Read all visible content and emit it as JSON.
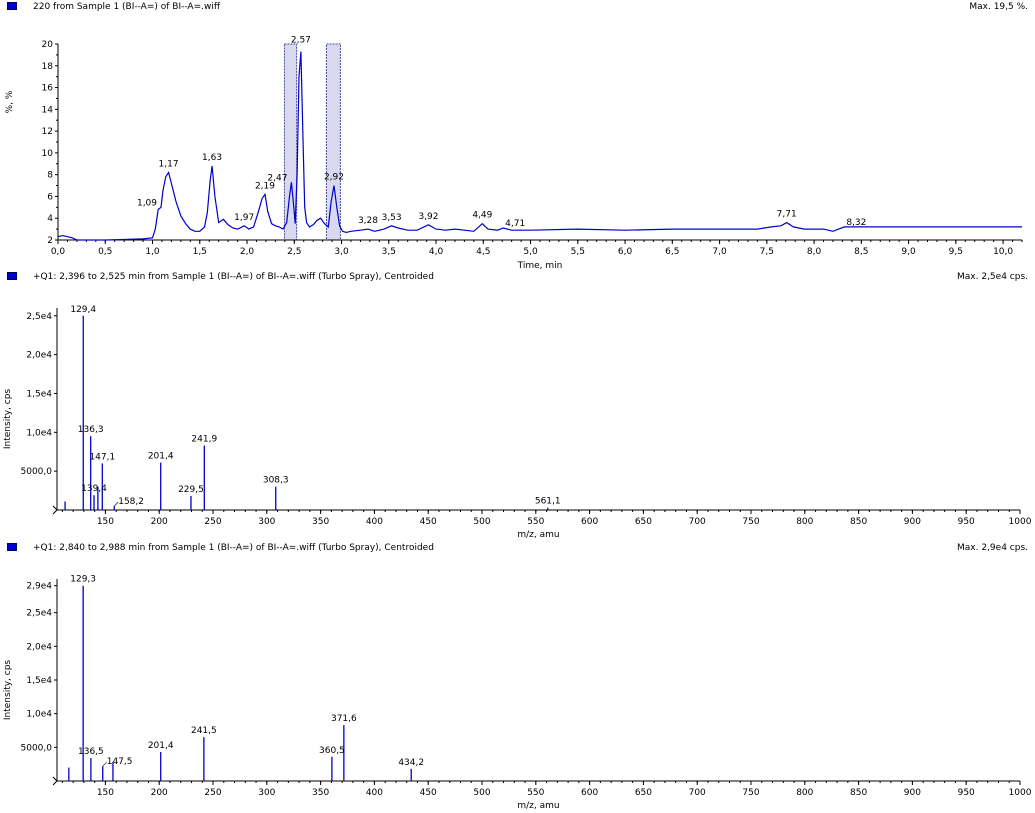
{
  "chart_data": [
    {
      "type": "line",
      "header": "220 from Sample 1 (BI--A=) of BI--A=.wiff",
      "max_label": "Max. 19,5 %.",
      "xlabel": "Time, min",
      "ylabel": "%, %",
      "xlim": [
        0.0,
        10.2
      ],
      "ylim": [
        2,
        20
      ],
      "x_ticks": [
        "0,0",
        "0,5",
        "1,0",
        "1,5",
        "2,0",
        "2,5",
        "3,0",
        "3,5",
        "4,0",
        "4,5",
        "5,0",
        "5,5",
        "6,0",
        "6,5",
        "7,0",
        "7,5",
        "8,0",
        "8,5",
        "9,0",
        "9,5",
        "10,0"
      ],
      "y_ticks": [
        "2",
        "4",
        "6",
        "8",
        "10",
        "12",
        "14",
        "16",
        "18",
        "20"
      ],
      "series": [
        {
          "color": "#0000cc",
          "x": [
            0.0,
            0.05,
            0.1,
            0.15,
            0.2,
            0.3,
            0.5,
            0.7,
            0.9,
            1.0,
            1.03,
            1.06,
            1.09,
            1.11,
            1.14,
            1.17,
            1.2,
            1.25,
            1.3,
            1.35,
            1.4,
            1.45,
            1.5,
            1.55,
            1.58,
            1.61,
            1.63,
            1.66,
            1.7,
            1.75,
            1.8,
            1.85,
            1.9,
            1.97,
            2.02,
            2.07,
            2.12,
            2.16,
            2.19,
            2.22,
            2.26,
            2.3,
            2.34,
            2.38,
            2.42,
            2.45,
            2.47,
            2.49,
            2.51,
            2.53,
            2.55,
            2.57,
            2.59,
            2.61,
            2.63,
            2.66,
            2.7,
            2.74,
            2.78,
            2.82,
            2.86,
            2.89,
            2.92,
            2.95,
            2.98,
            3.01,
            3.05,
            3.1,
            3.2,
            3.28,
            3.35,
            3.45,
            3.53,
            3.6,
            3.7,
            3.8,
            3.92,
            4.0,
            4.1,
            4.2,
            4.3,
            4.4,
            4.49,
            4.55,
            4.65,
            4.71,
            4.8,
            5.0,
            5.5,
            6.0,
            6.5,
            7.0,
            7.4,
            7.55,
            7.65,
            7.71,
            7.78,
            7.9,
            8.1,
            8.2,
            8.32,
            8.5,
            9.0,
            9.5,
            10.0,
            10.2
          ],
          "y": [
            2.3,
            2.4,
            2.3,
            2.2,
            2.0,
            2.0,
            2.0,
            2.05,
            2.1,
            2.2,
            3.0,
            4.8,
            5.0,
            6.5,
            7.8,
            8.2,
            7.2,
            5.5,
            4.2,
            3.5,
            3.0,
            2.8,
            2.8,
            3.2,
            4.5,
            7.5,
            8.8,
            6.0,
            3.6,
            3.9,
            3.4,
            3.1,
            3.0,
            3.3,
            3.0,
            3.2,
            4.6,
            5.8,
            6.2,
            4.6,
            3.5,
            3.3,
            3.2,
            3.0,
            3.6,
            6.0,
            7.3,
            5.5,
            3.5,
            8.0,
            17.0,
            19.3,
            12.0,
            5.0,
            3.6,
            3.2,
            3.4,
            3.8,
            4.0,
            3.5,
            3.2,
            5.5,
            7.0,
            5.0,
            3.3,
            2.8,
            2.7,
            2.8,
            2.9,
            3.0,
            2.8,
            3.0,
            3.3,
            3.1,
            2.9,
            2.9,
            3.4,
            3.0,
            2.9,
            3.0,
            2.9,
            2.8,
            3.5,
            3.0,
            2.9,
            3.1,
            2.9,
            2.9,
            3.0,
            2.9,
            3.0,
            3.0,
            3.0,
            3.2,
            3.3,
            3.6,
            3.2,
            3.0,
            3.0,
            2.8,
            3.2,
            3.2,
            3.2,
            3.2,
            3.2,
            3.2
          ]
        }
      ],
      "peak_labels": [
        {
          "x": 1.09,
          "y": 5.0,
          "text": "1,09"
        },
        {
          "x": 1.17,
          "y": 8.2,
          "text": "1,17"
        },
        {
          "x": 1.63,
          "y": 8.8,
          "text": "1,63"
        },
        {
          "x": 1.97,
          "y": 3.3,
          "text": "1,97"
        },
        {
          "x": 2.19,
          "y": 6.2,
          "text": "2,19"
        },
        {
          "x": 2.47,
          "y": 7.3,
          "text": "2,47"
        },
        {
          "x": 2.57,
          "y": 19.3,
          "text": "2,57"
        },
        {
          "x": 2.92,
          "y": 7.0,
          "text": "2,92"
        },
        {
          "x": 3.28,
          "y": 3.0,
          "text": "3,28"
        },
        {
          "x": 3.53,
          "y": 3.3,
          "text": "3,53"
        },
        {
          "x": 3.92,
          "y": 3.4,
          "text": "3,92"
        },
        {
          "x": 4.49,
          "y": 3.5,
          "text": "4,49"
        },
        {
          "x": 4.71,
          "y": 3.1,
          "text": "4,71"
        },
        {
          "x": 7.71,
          "y": 3.6,
          "text": "7,71"
        },
        {
          "x": 8.32,
          "y": 3.2,
          "text": "8,32"
        }
      ],
      "selection_ranges": [
        [
          2.396,
          2.525
        ],
        [
          2.84,
          2.988
        ]
      ]
    },
    {
      "type": "bar",
      "header": "+Q1: 2,396 to 2,525 min from Sample 1 (BI--A=) of BI--A=.wiff (Turbo Spray), Centroided",
      "max_label": "Max. 2,5e4 cps.",
      "xlabel": "m/z, amu",
      "ylabel": "Intensity, cps",
      "xlim": [
        105,
        1000
      ],
      "ylim": [
        0,
        26000
      ],
      "x_ticks": [
        "150",
        "200",
        "250",
        "300",
        "350",
        "400",
        "450",
        "500",
        "550",
        "600",
        "650",
        "700",
        "750",
        "800",
        "850",
        "900",
        "950",
        "1000"
      ],
      "y_ticks": [
        "5000,0",
        "1,0e4",
        "1,5e4",
        "2,0e4",
        "2,5e4"
      ],
      "peaks_x": [
        112.5,
        129.4,
        136.3,
        139.4,
        143.0,
        147.1,
        158.2,
        201.4,
        229.5,
        241.9,
        308.3,
        561.1
      ],
      "peaks_y": [
        1100,
        25000,
        9500,
        1900,
        3000,
        6000,
        500,
        6100,
        1800,
        8300,
        3000,
        300
      ],
      "labels": [
        {
          "x": 129.4,
          "text": "129,4"
        },
        {
          "x": 136.3,
          "text": "136,3"
        },
        {
          "x": 147.1,
          "text": "147,1"
        },
        {
          "x": 139.4,
          "text": "139,4"
        },
        {
          "x": 158.2,
          "text": "158,2"
        },
        {
          "x": 201.4,
          "text": "201,4"
        },
        {
          "x": 229.5,
          "text": "229,5"
        },
        {
          "x": 241.9,
          "text": "241,9"
        },
        {
          "x": 308.3,
          "text": "308,3"
        },
        {
          "x": 561.1,
          "text": "561,1"
        }
      ]
    },
    {
      "type": "bar",
      "header": "+Q1: 2,840 to 2,988 min from Sample 1 (BI--A=) of BI--A=.wiff (Turbo Spray), Centroided",
      "max_label": "Max. 2,9e4 cps.",
      "xlabel": "m/z, amu",
      "ylabel": "Intensity, cps",
      "xlim": [
        105,
        1000
      ],
      "ylim": [
        0,
        30000
      ],
      "x_ticks": [
        "150",
        "200",
        "250",
        "300",
        "350",
        "400",
        "450",
        "500",
        "550",
        "600",
        "650",
        "700",
        "750",
        "800",
        "850",
        "900",
        "950",
        "1000"
      ],
      "y_ticks": [
        "5000,0",
        "1,0e4",
        "1,5e4",
        "2,0e4",
        "2,5e4",
        "2,9e4"
      ],
      "peaks_x": [
        116.0,
        129.3,
        136.5,
        147.5,
        157.0,
        201.4,
        241.5,
        360.5,
        371.6,
        434.2
      ],
      "peaks_y": [
        2000,
        29000,
        3400,
        2200,
        2800,
        4300,
        6500,
        3600,
        8300,
        1800
      ],
      "labels": [
        {
          "x": 129.3,
          "text": "129,3"
        },
        {
          "x": 136.5,
          "text": "136,5"
        },
        {
          "x": 147.5,
          "text": "147,5"
        },
        {
          "x": 201.4,
          "text": "201,4"
        },
        {
          "x": 241.5,
          "text": "241,5"
        },
        {
          "x": 360.5,
          "text": "360,5"
        },
        {
          "x": 371.6,
          "text": "371,6"
        },
        {
          "x": 434.2,
          "text": "434,2"
        }
      ]
    }
  ]
}
